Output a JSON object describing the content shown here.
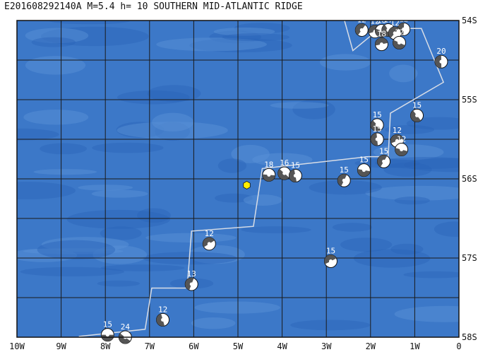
{
  "title": "E201608292140A M=5.4 h= 10 SOUTHERN MID-ATLANTIC RIDGE",
  "colors": {
    "ocean_deep": "#2a63b8",
    "ocean_mid": "#3c78c8",
    "ocean_shallow": "#5a93d6",
    "grid": "#1a1a1a",
    "ridge": "#d8dde6",
    "epicenter": "#ffee00",
    "beachball_dark": "#555555",
    "beachball_light": "#ffffff"
  },
  "extent": {
    "lon": [
      -10,
      0
    ],
    "lat": [
      -58,
      -54
    ]
  },
  "lon_labels": [
    "10W",
    "9W",
    "8W",
    "7W",
    "6W",
    "5W",
    "4W",
    "3W",
    "2W",
    "1W",
    "0"
  ],
  "lat_labels": [
    "54S",
    "55S",
    "56S",
    "57S",
    "58S"
  ],
  "epicenter": {
    "lon": -4.8,
    "lat": -56.08,
    "icon": "yellow-hexagon"
  },
  "ridge_line": [
    [
      -8.6,
      -57.99
    ],
    [
      -7.1,
      -57.9
    ],
    [
      -6.95,
      -57.38
    ],
    [
      -6.15,
      -57.38
    ],
    [
      -6.05,
      -56.66
    ],
    [
      -4.65,
      -56.6
    ],
    [
      -4.45,
      -55.87
    ],
    [
      -2.05,
      -55.72
    ],
    [
      -1.6,
      -55.72
    ],
    [
      -1.55,
      -55.17
    ],
    [
      -0.35,
      -54.78
    ],
    [
      -0.85,
      -54.1
    ],
    [
      -1.9,
      -54.1
    ],
    [
      -1.9,
      -54.15
    ],
    [
      -2.4,
      -54.38
    ],
    [
      -2.6,
      -53.98
    ]
  ],
  "events": [
    {
      "label": "15",
      "lon": -7.95,
      "lat": -57.97
    },
    {
      "label": "24",
      "lon": -7.55,
      "lat": -58.0
    },
    {
      "label": "12",
      "lon": -6.7,
      "lat": -57.78
    },
    {
      "label": "13",
      "lon": -6.05,
      "lat": -57.33
    },
    {
      "label": "12",
      "lon": -5.65,
      "lat": -56.82
    },
    {
      "label": "18",
      "lon": -4.3,
      "lat": -55.95
    },
    {
      "label": "16",
      "lon": -3.95,
      "lat": -55.93
    },
    {
      "label": "15",
      "lon": -3.7,
      "lat": -55.96
    },
    {
      "label": "15",
      "lon": -2.6,
      "lat": -56.02
    },
    {
      "label": "15",
      "lon": -2.9,
      "lat": -57.04
    },
    {
      "label": "15",
      "lon": -2.15,
      "lat": -55.89
    },
    {
      "label": "15",
      "lon": -1.85,
      "lat": -55.32
    },
    {
      "label": "15",
      "lon": -1.85,
      "lat": -55.5
    },
    {
      "label": "15",
      "lon": -1.7,
      "lat": -55.78
    },
    {
      "label": "12",
      "lon": -1.4,
      "lat": -55.52
    },
    {
      "label": "12",
      "lon": -1.3,
      "lat": -55.63
    },
    {
      "label": "15",
      "lon": -0.95,
      "lat": -55.2
    },
    {
      "label": "20",
      "lon": -0.4,
      "lat": -54.52
    },
    {
      "label": "12",
      "lon": -2.2,
      "lat": -54.12
    },
    {
      "label": "12",
      "lon": -1.9,
      "lat": -54.14
    },
    {
      "label": "16",
      "lon": -1.75,
      "lat": -54.13
    },
    {
      "label": "17",
      "lon": -1.6,
      "lat": -54.12
    },
    {
      "label": "12",
      "lon": -1.25,
      "lat": -54.11
    },
    {
      "label": "12",
      "lon": -1.45,
      "lat": -54.16
    },
    {
      "label": "18",
      "lon": -1.75,
      "lat": -54.3
    },
    {
      "label": "12",
      "lon": -1.35,
      "lat": -54.28
    }
  ]
}
